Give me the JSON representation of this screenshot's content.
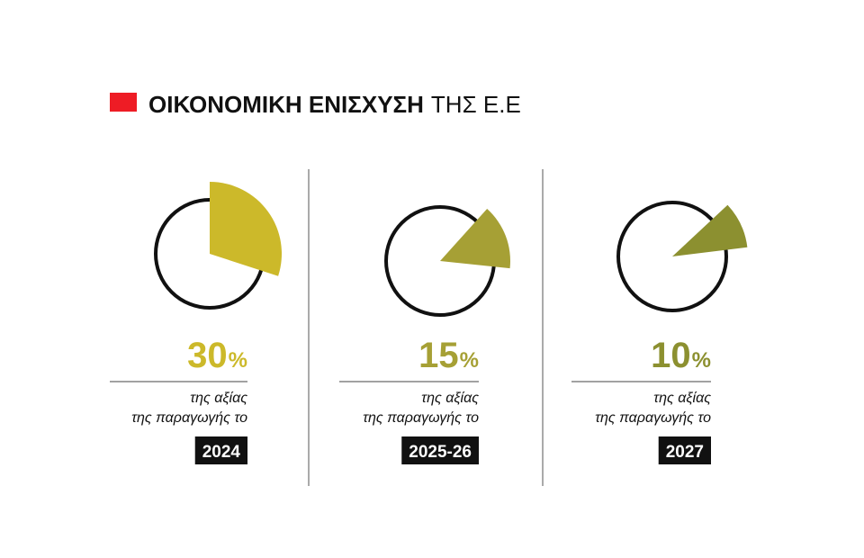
{
  "title": {
    "bold": "ΟΙΚΟΝΟΜΙΚΗ ΕΝΙΣΧΥΣΗ",
    "light": "ΤΗΣ Ε.Ε"
  },
  "chart_data": [
    {
      "type": "pie",
      "value": 30,
      "unit": "%",
      "color": "#ccb92a",
      "caption": [
        "της αξίας",
        "της παραγωγής το"
      ],
      "year": "2024"
    },
    {
      "type": "pie",
      "value": 15,
      "unit": "%",
      "color": "#a6a035",
      "caption": [
        "της αξίας",
        "της παραγωγής το"
      ],
      "year": "2025-26"
    },
    {
      "type": "pie",
      "value": 10,
      "unit": "%",
      "color": "#8c9030",
      "caption": [
        "της αξίας",
        "της παραγωγής το"
      ],
      "year": "2027"
    }
  ]
}
